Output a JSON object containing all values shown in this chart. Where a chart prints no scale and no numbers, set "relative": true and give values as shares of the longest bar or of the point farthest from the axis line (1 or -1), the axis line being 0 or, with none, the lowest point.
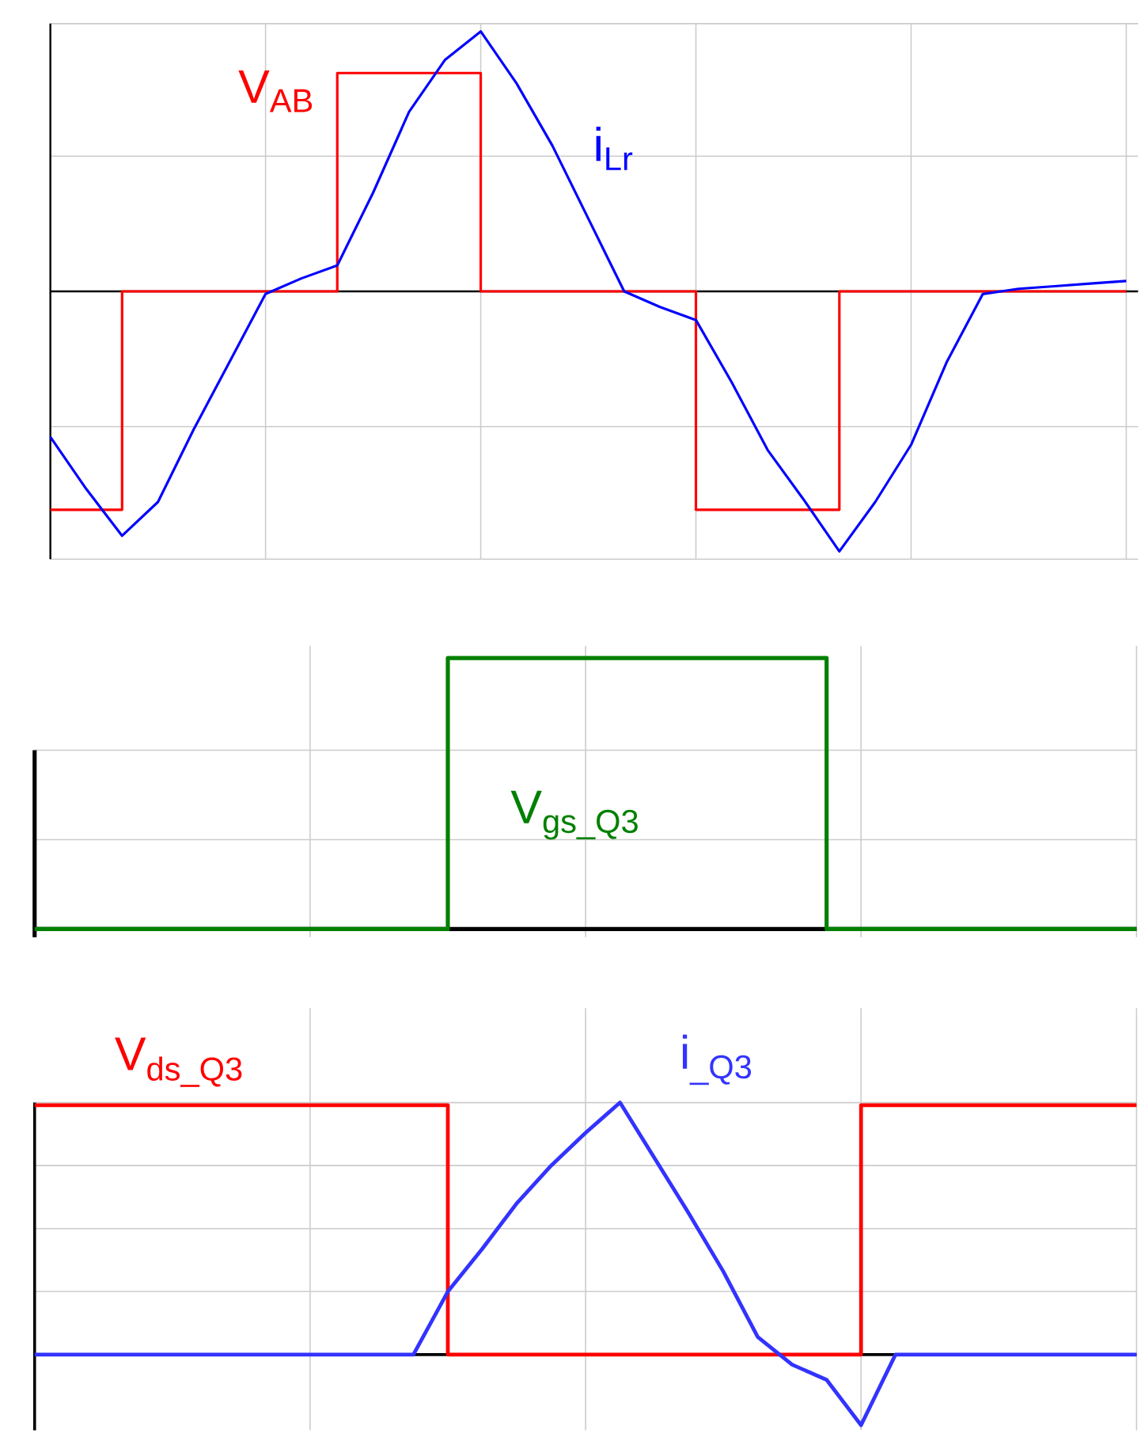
{
  "chart_data": [
    {
      "type": "line",
      "relative": true,
      "grid": true,
      "categories": [
        null,
        null,
        null,
        null,
        null,
        null,
        null,
        null,
        null,
        null,
        null,
        null,
        null,
        null,
        null,
        null,
        null,
        null,
        null,
        null,
        null,
        null,
        null,
        null,
        null,
        null,
        null,
        null,
        null,
        null,
        null
      ],
      "series": [
        {
          "name": "V$_{AB}$",
          "type": "step",
          "color": "#ff0000",
          "values": [
            -0.84,
            -0.84,
            0,
            0,
            0,
            0,
            0,
            0,
            0.84,
            0.84,
            0.84,
            0.84,
            0,
            0,
            0,
            0,
            0,
            0,
            -0.84,
            -0.84,
            -0.84,
            -0.84,
            0,
            0,
            0,
            0,
            0,
            0,
            0,
            0,
            0
          ]
        },
        {
          "name": "i$_{Lr}$",
          "color": "#0000ff",
          "values": [
            -0.56,
            -0.76,
            -0.94,
            -0.81,
            -0.53,
            -0.27,
            -0.01,
            0.05,
            0.1,
            0.38,
            0.69,
            0.89,
            1.0,
            0.8,
            0.56,
            0.28,
            0,
            -0.06,
            -0.11,
            -0.35,
            -0.61,
            -0.8,
            -1.0,
            -0.81,
            -0.59,
            -0.27,
            -0.01,
            0.01,
            0.02,
            0.03,
            0.04
          ]
        }
      ]
    },
    {
      "type": "step",
      "relative": true,
      "grid": true,
      "categories": [
        null,
        null,
        null,
        null,
        null,
        null,
        null,
        null,
        null,
        null,
        null,
        null,
        null,
        null,
        null,
        null,
        null,
        null,
        null,
        null,
        null,
        null,
        null,
        null,
        null,
        null,
        null,
        null,
        null,
        null,
        null,
        null,
        null
      ],
      "series": [
        {
          "name": "V$_{gs_Q3}$",
          "color": "#008000",
          "values": [
            0,
            0,
            0,
            0,
            0,
            0,
            0,
            0,
            0,
            0,
            0,
            0,
            1,
            1,
            1,
            1,
            1,
            1,
            1,
            1,
            1,
            1,
            1,
            0,
            0,
            0,
            0,
            0,
            0,
            0,
            0,
            0,
            0
          ]
        }
      ]
    },
    {
      "type": "line",
      "relative": true,
      "grid": true,
      "categories": [
        null,
        null,
        null,
        null,
        null,
        null,
        null,
        null,
        null,
        null,
        null,
        null,
        null,
        null,
        null,
        null,
        null,
        null,
        null,
        null,
        null,
        null,
        null,
        null,
        null,
        null,
        null,
        null,
        null,
        null,
        null,
        null,
        null
      ],
      "series": [
        {
          "name": "V$_{ds_Q3}$",
          "type": "step",
          "color": "#ff0000",
          "values": [
            0.99,
            0.99,
            0.99,
            0.99,
            0.99,
            0.99,
            0.99,
            0.99,
            0.99,
            0.99,
            0.99,
            0.99,
            0,
            0,
            0,
            0,
            0,
            0,
            0,
            0,
            0,
            0,
            0,
            0,
            0.99,
            0.99,
            0.99,
            0.99,
            0.99,
            0.99,
            0.99,
            0.99,
            0.99
          ]
        },
        {
          "name": "i$_{_Q3}$",
          "color": "#3333ff",
          "values": [
            0,
            0,
            0,
            0,
            0,
            0,
            0,
            0,
            0,
            0,
            0,
            0,
            0.25,
            0.42,
            0.6,
            0.75,
            0.88,
            1.0,
            0.78,
            0.56,
            0.33,
            0.07,
            -0.04,
            -0.1,
            -0.28,
            0,
            0,
            0,
            0,
            0,
            0,
            0,
            0
          ]
        }
      ]
    }
  ]
}
